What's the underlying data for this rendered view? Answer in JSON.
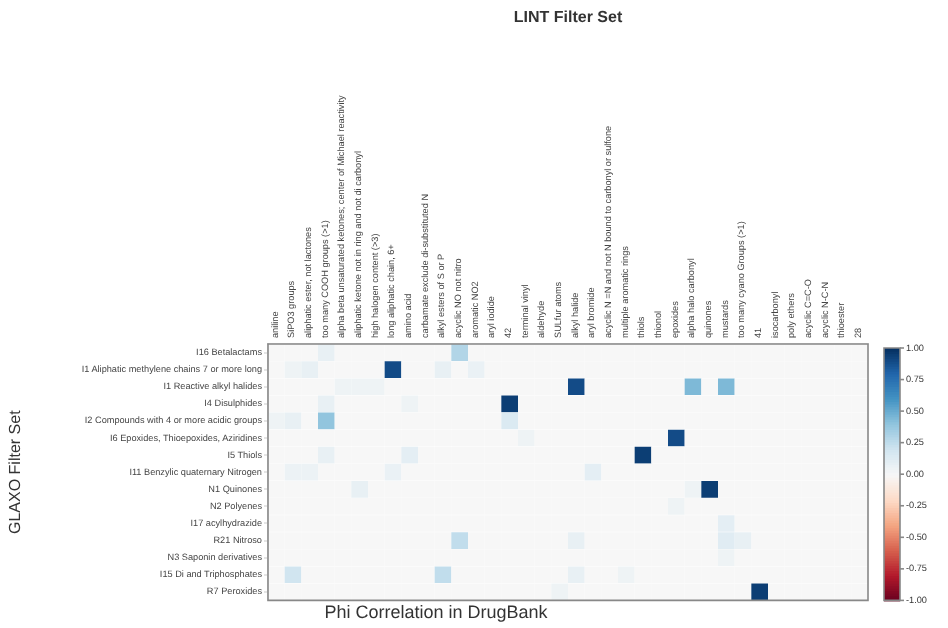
{
  "chart_data": {
    "type": "heatmap",
    "title": "Phi Correlation in DrugBank",
    "xlabel": "LINT Filter Set",
    "ylabel": "GLAXO Filter Set",
    "categories": [
      "aniline",
      "SiPO3 groups",
      "aliphatic ester, not lactones",
      "too many COOH groups (>1)",
      "alpha beta unsaturated ketones; center of Michael reactivity",
      "aliphatic ketone not in ring and not di carbonyl",
      "high halogen content (>3)",
      "long aliphatic chain, 6+",
      "amino acid",
      "carbamate exclude di-substituted N",
      "alkyl esters of S or P",
      "acyclic NO not nitro",
      "aromatic NO2",
      "aryl iodide",
      "42",
      "terminal vinyl",
      "aldehyde",
      "SULfur atoms",
      "alkyl halide",
      "aryl bromide",
      "acyclic N =N and not N bound to carbonyl or sulfone",
      "multiple aromatic rings",
      "thiols",
      "thionol",
      "epoxides",
      "alpha halo carbonyl",
      "quinones",
      "mustards",
      "too many cyano Groups (>1)",
      "41",
      "isocarbonyl",
      "poly ethers",
      "acyclic C=C-O",
      "acyclic N-C-N",
      "thioester",
      "28"
    ],
    "y_categories": [
      "I16 Betalactams",
      "I1 Aliphatic methylene chains 7 or more long",
      "I1 Reactive alkyl halides",
      "I4 Disulphides",
      "I2 Compounds with 4 or more acidic groups",
      "I6 Epoxides, Thioepoxides, Aziridines",
      "I5 Thiols",
      "I11 Benzylic quaternary Nitrogen",
      "N1 Quinones",
      "N2 Polyenes",
      "I17 acylhydrazide",
      "R21 Nitroso",
      "N3 Saponin derivatives",
      "I15 Di and Triphosphates",
      "R7 Peroxides"
    ],
    "cells": [
      [
        0,
        0,
        0,
        0.08,
        0,
        0,
        0,
        0,
        0,
        0,
        0,
        0.3,
        0,
        0,
        0,
        0,
        0,
        0,
        0,
        0,
        0,
        0,
        0,
        0,
        0,
        0,
        0,
        0,
        0,
        0,
        0,
        0,
        0,
        0,
        0,
        0
      ],
      [
        0,
        0.05,
        0.08,
        0,
        0,
        0,
        0,
        0.9,
        0,
        0,
        0.08,
        0,
        0.07,
        0,
        0,
        0,
        0,
        0,
        0,
        0,
        0,
        0,
        0,
        0,
        0,
        0,
        0,
        0,
        0,
        0,
        0,
        0,
        0,
        0,
        0,
        0
      ],
      [
        0,
        0,
        0,
        0,
        0.05,
        0.05,
        0.05,
        0,
        0,
        0,
        0,
        0,
        0,
        0,
        0,
        0,
        0,
        0,
        0.9,
        0,
        0,
        0,
        0,
        0,
        0,
        0.45,
        0,
        0.45,
        0,
        0,
        0,
        0,
        0,
        0,
        0,
        0
      ],
      [
        0,
        0,
        0,
        0.08,
        0,
        0,
        0,
        0,
        0.05,
        0,
        0,
        0,
        0,
        0,
        0.95,
        0,
        0,
        0,
        0,
        0,
        0,
        0,
        0,
        0,
        0,
        0,
        0,
        0,
        0,
        0,
        0,
        0,
        0,
        0,
        0,
        0
      ],
      [
        0.05,
        0.08,
        0,
        0.4,
        0,
        0,
        0,
        0,
        0,
        0,
        0,
        0,
        0,
        0,
        0.15,
        0,
        0,
        0,
        0,
        0,
        0,
        0,
        0,
        0,
        0,
        0,
        0,
        0,
        0,
        0,
        0,
        0,
        0,
        0,
        0,
        0
      ],
      [
        0,
        0,
        0,
        0,
        0,
        0,
        0,
        0,
        0,
        0,
        0,
        0,
        0,
        0,
        0,
        0.05,
        0,
        0,
        0,
        0,
        0,
        0,
        0,
        0,
        0.9,
        0,
        0,
        0,
        0,
        0,
        0,
        0,
        0,
        0,
        0,
        0
      ],
      [
        0,
        0,
        0,
        0.08,
        0,
        0,
        0,
        0,
        0.1,
        0,
        0,
        0,
        0,
        0,
        0,
        0,
        0,
        0,
        0,
        0,
        0,
        0,
        0.95,
        0,
        0,
        0,
        0,
        0,
        0,
        0,
        0,
        0,
        0,
        0,
        0,
        0
      ],
      [
        0,
        0.06,
        0.06,
        0,
        0,
        0,
        0,
        0.07,
        0,
        0,
        0,
        0,
        0,
        0,
        0,
        0,
        0,
        0,
        0,
        0.1,
        0,
        0,
        0,
        0,
        0,
        0,
        0,
        0,
        0,
        0,
        0,
        0,
        0,
        0,
        0,
        0
      ],
      [
        0,
        0,
        0,
        0,
        0,
        0.08,
        0,
        0,
        0,
        0,
        0,
        0,
        0,
        0,
        0,
        0,
        0,
        0,
        0,
        0,
        0,
        0,
        0,
        0,
        0,
        0.05,
        0.95,
        0,
        0,
        0,
        0,
        0,
        0,
        0,
        0,
        0
      ],
      [
        0,
        0,
        0,
        0,
        0,
        0,
        0,
        0,
        0,
        0,
        0,
        0,
        0,
        0,
        0,
        0,
        0,
        0,
        0,
        0,
        0,
        0,
        0,
        0,
        0.05,
        0,
        0,
        0,
        0,
        0,
        0,
        0,
        0,
        0,
        0,
        0
      ],
      [
        0,
        0,
        0,
        0,
        0,
        0,
        0,
        0,
        0,
        0,
        0,
        0,
        0,
        0,
        0,
        0,
        0,
        0,
        0,
        0,
        0,
        0,
        0,
        0,
        0,
        0,
        0,
        0.1,
        0,
        0,
        0,
        0,
        0,
        0,
        0,
        0
      ],
      [
        0,
        0,
        0,
        0,
        0,
        0,
        0,
        0,
        0,
        0,
        0,
        0.25,
        0,
        0,
        0,
        0,
        0,
        0,
        0.08,
        0,
        0,
        0,
        0,
        0,
        0,
        0,
        0,
        0.12,
        0.08,
        0,
        0,
        0,
        0,
        0,
        0,
        0
      ],
      [
        0,
        0,
        0,
        0,
        0,
        0,
        0,
        0,
        0,
        0,
        0,
        0,
        0,
        0,
        0,
        0,
        0,
        0,
        0,
        0,
        0,
        0,
        0,
        0,
        0,
        0,
        0,
        0.05,
        0,
        0,
        0,
        0,
        0,
        0,
        0,
        0
      ],
      [
        0,
        0.2,
        0,
        0,
        0,
        0,
        0,
        0,
        0,
        0,
        0.25,
        0,
        0,
        0,
        0,
        0,
        0,
        0,
        0.08,
        0,
        0,
        0.05,
        0,
        0,
        0,
        0,
        0,
        0,
        0,
        0,
        0,
        0,
        0,
        0,
        0,
        0
      ],
      [
        0,
        0,
        0,
        0,
        0,
        0,
        0,
        0,
        0,
        0,
        0,
        0,
        0,
        0,
        0,
        0,
        0,
        0.05,
        0,
        0,
        0,
        0,
        0,
        0,
        0,
        0,
        0,
        0,
        0,
        0.95,
        0,
        0,
        0,
        0,
        0,
        0
      ]
    ],
    "clim": [
      -1,
      1
    ],
    "cticks": [
      {
        "value": 1,
        "label": "1.00"
      },
      {
        "value": 0.75,
        "label": "0.75"
      },
      {
        "value": 0.5,
        "label": "0.50"
      },
      {
        "value": 0.25,
        "label": "0.25"
      },
      {
        "value": 0,
        "label": "0.00"
      },
      {
        "value": -0.25,
        "label": "-0.25"
      },
      {
        "value": -0.5,
        "label": "-0.50"
      },
      {
        "value": -0.75,
        "label": "-0.75"
      },
      {
        "value": -1,
        "label": "-1.00"
      }
    ]
  }
}
